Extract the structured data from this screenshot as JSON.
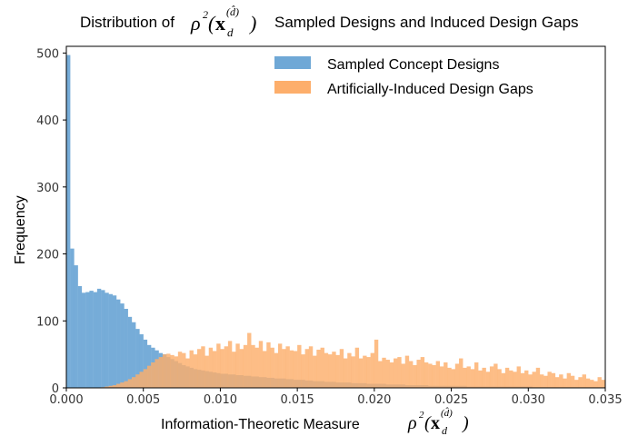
{
  "chart_data": {
    "type": "histogram",
    "title_prefix": "Distribution of",
    "title_suffix": "Sampled Designs and Induced Design Gaps",
    "math_rho": "ρ",
    "math_sq": "2",
    "math_x": "x",
    "math_d": "d",
    "math_dhat": "(d̂)",
    "xlabel": "Information-Theoretic Measure",
    "ylabel": "Frequency",
    "xlim": [
      0.0,
      0.035
    ],
    "ylim": [
      0,
      510
    ],
    "xticks": [
      "0.000",
      "0.005",
      "0.010",
      "0.015",
      "0.020",
      "0.025",
      "0.030",
      "0.035"
    ],
    "yticks": [
      "0",
      "100",
      "200",
      "300",
      "400",
      "500"
    ],
    "bin_width": 0.00025,
    "legend_position": "top-right",
    "series": [
      {
        "name": "Sampled Concept Designs",
        "color": "#6fa8d6",
        "counts": [
          497,
          208,
          183,
          152,
          142,
          143,
          145,
          143,
          148,
          146,
          142,
          140,
          138,
          132,
          126,
          118,
          106,
          98,
          88,
          80,
          72,
          64,
          60,
          56,
          52,
          50,
          46,
          43,
          40,
          37,
          34,
          32,
          30,
          28,
          27,
          26,
          25,
          24,
          23,
          22,
          21,
          21,
          20,
          20,
          19,
          19,
          18,
          18,
          17,
          17,
          16,
          16,
          15,
          15,
          14,
          14,
          14,
          13,
          13,
          12,
          12,
          12,
          11,
          11,
          10,
          10,
          10,
          9,
          9,
          9,
          8,
          8,
          8,
          8,
          7,
          7,
          7,
          7,
          6,
          6,
          6,
          6,
          6,
          5,
          5,
          5,
          5,
          5,
          4,
          4,
          4,
          4,
          4,
          4,
          3,
          3,
          3,
          3,
          3,
          3,
          3,
          3,
          3,
          3,
          2,
          2,
          2,
          2,
          2,
          2,
          2,
          2,
          2,
          2,
          2,
          2,
          2,
          2,
          2,
          2,
          2,
          1,
          1,
          1,
          1,
          1,
          1,
          1,
          1,
          1,
          1,
          1,
          1,
          1,
          1,
          1,
          1,
          1,
          1,
          1
        ]
      },
      {
        "name": "Artificially-Induced Design Gaps",
        "color": "#fdae6b",
        "counts": [
          0,
          0,
          0,
          0,
          0,
          0,
          0,
          0,
          0,
          1,
          2,
          3,
          4,
          6,
          8,
          10,
          13,
          16,
          20,
          24,
          28,
          33,
          38,
          43,
          46,
          50,
          51,
          49,
          47,
          54,
          52,
          44,
          56,
          50,
          58,
          62,
          48,
          60,
          55,
          66,
          58,
          62,
          70,
          54,
          66,
          58,
          64,
          82,
          64,
          60,
          70,
          55,
          68,
          60,
          52,
          66,
          58,
          62,
          56,
          55,
          64,
          50,
          58,
          62,
          48,
          57,
          60,
          52,
          50,
          54,
          49,
          58,
          44,
          52,
          47,
          60,
          44,
          48,
          46,
          52,
          72,
          40,
          45,
          42,
          38,
          44,
          46,
          36,
          48,
          40,
          34,
          42,
          46,
          38,
          36,
          34,
          40,
          32,
          38,
          30,
          28,
          36,
          44,
          30,
          32,
          28,
          38,
          26,
          30,
          24,
          32,
          36,
          28,
          22,
          30,
          26,
          24,
          32,
          22,
          26,
          20,
          24,
          30,
          20,
          18,
          24,
          22,
          16,
          20,
          14,
          22,
          18,
          12,
          16,
          20,
          14,
          12,
          10,
          16,
          12
        ]
      }
    ]
  }
}
